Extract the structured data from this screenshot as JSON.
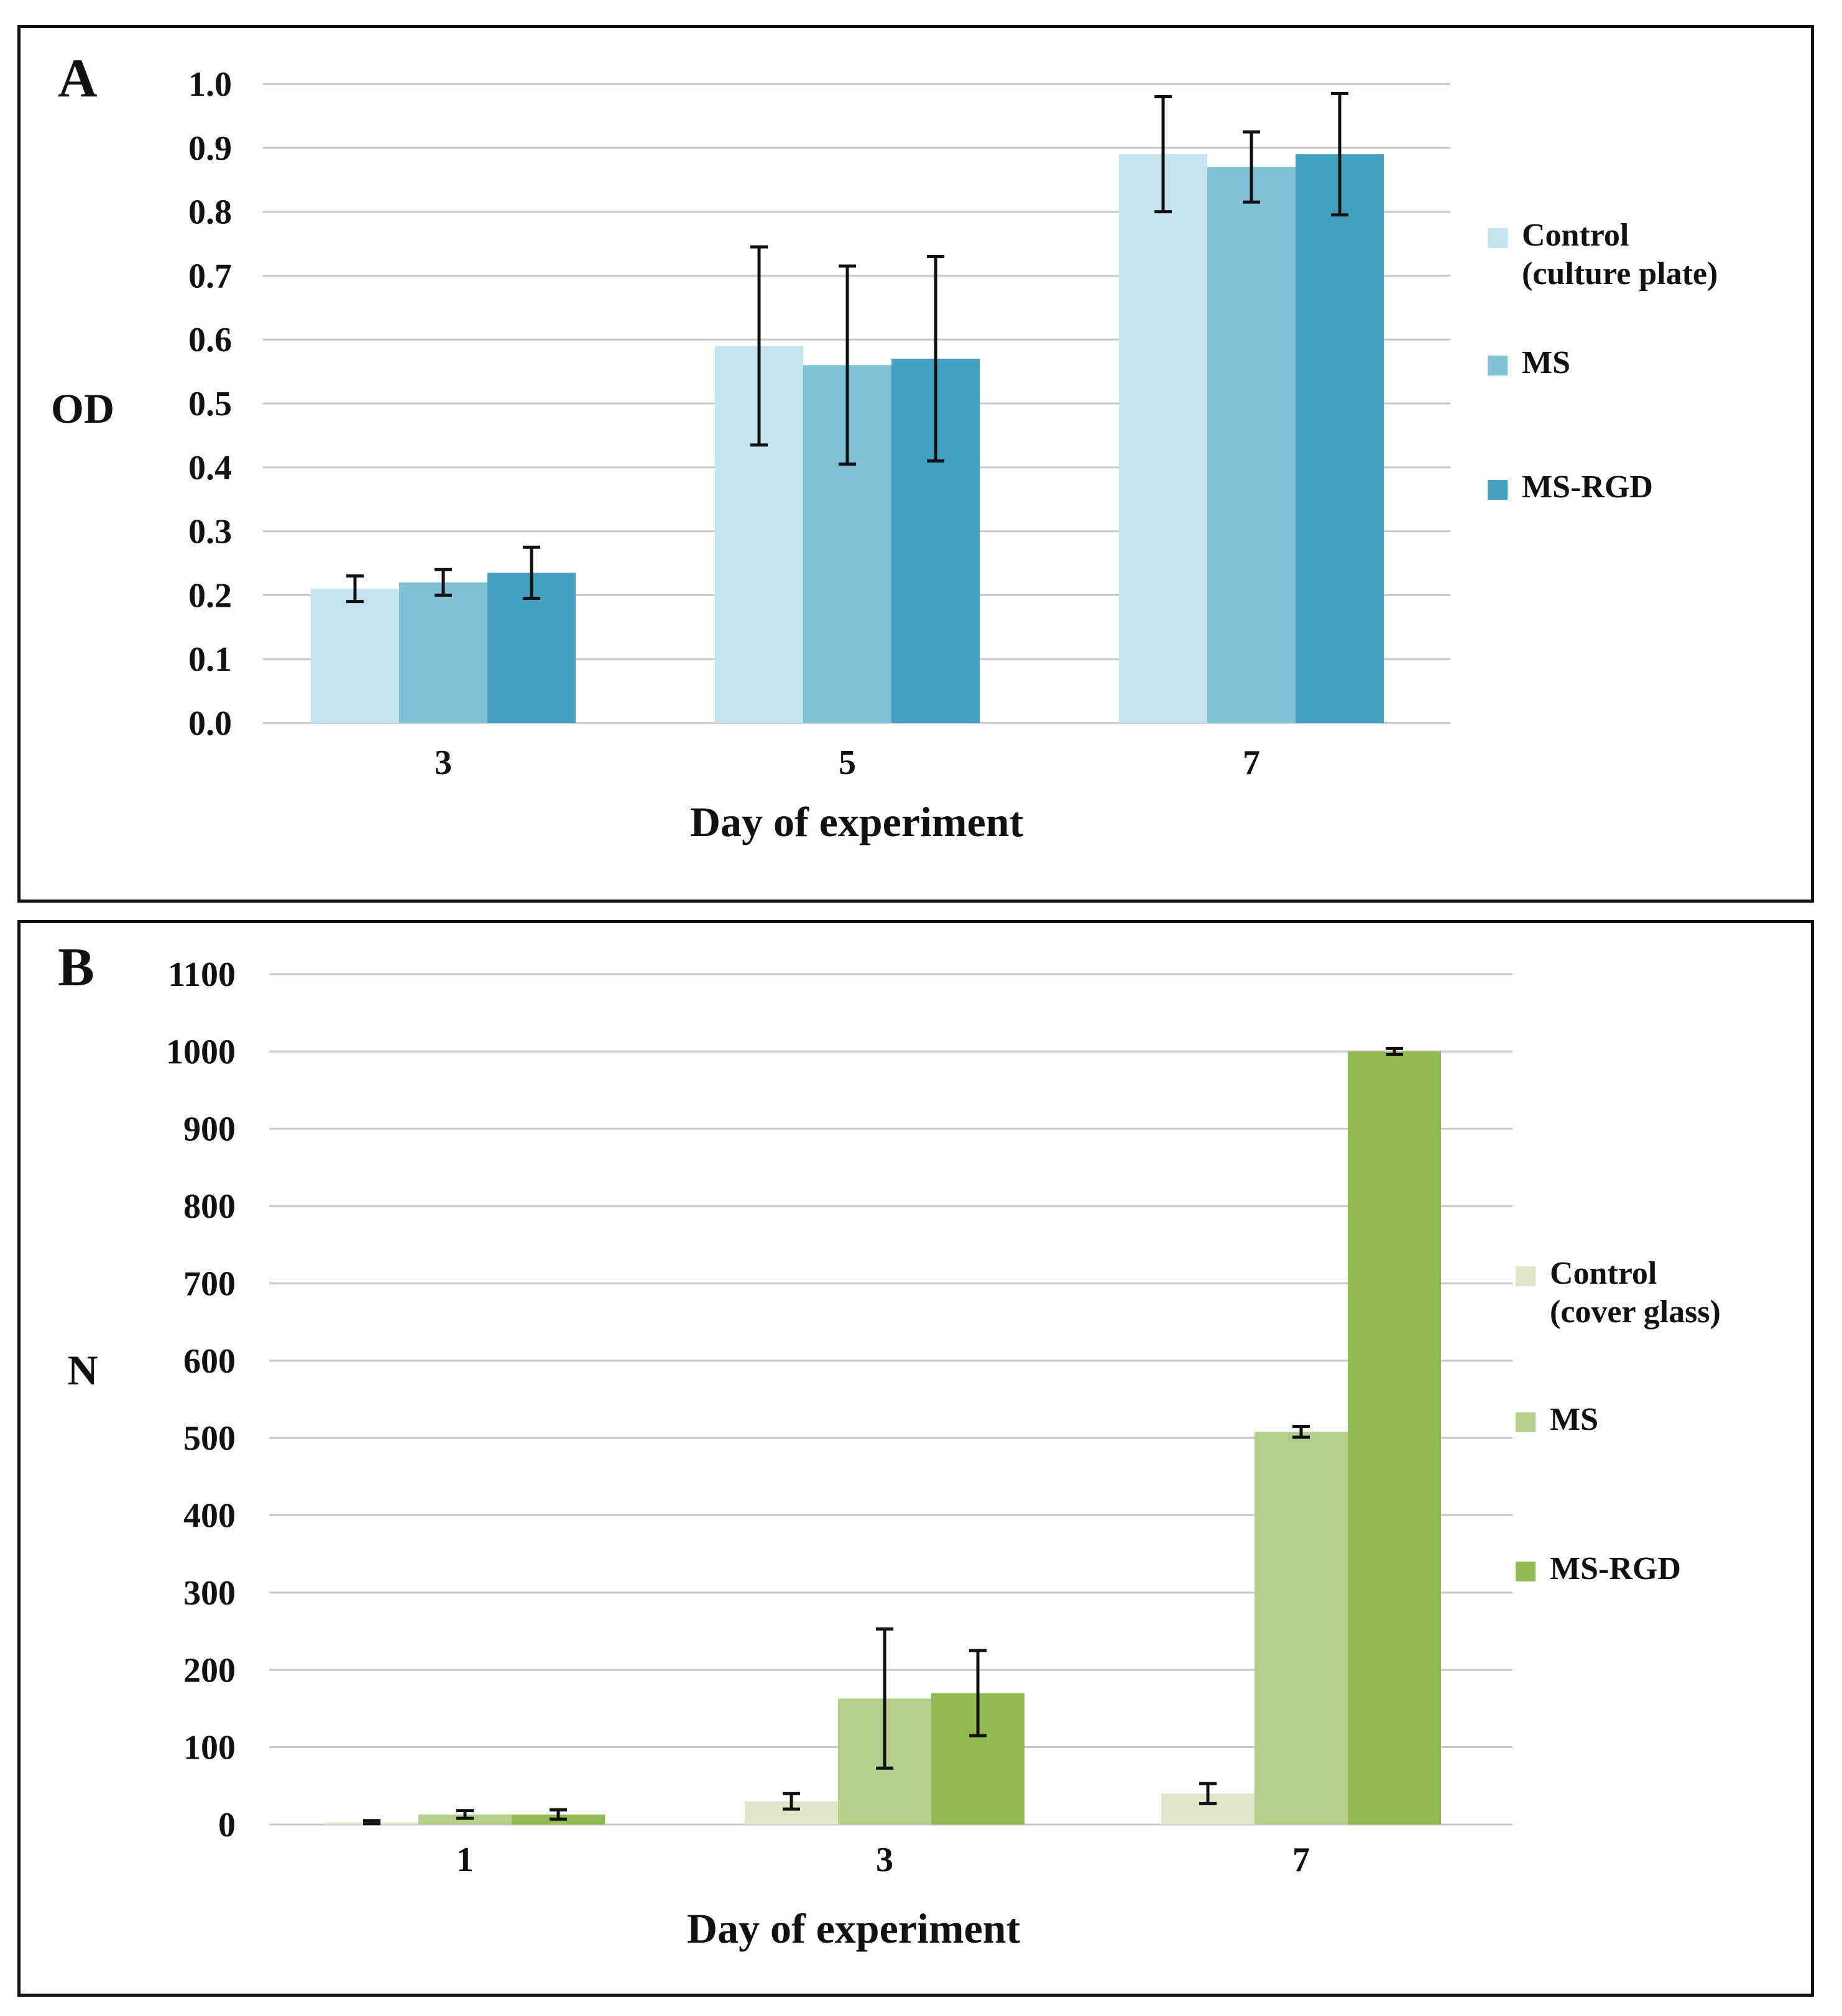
{
  "chart_data": [
    {
      "panel_label": "A",
      "type": "bar",
      "xlabel": "Day of experiment",
      "ylabel": "OD",
      "ylim": [
        0,
        1.0
      ],
      "yticks": [
        "0.0",
        "0.1",
        "0.2",
        "0.3",
        "0.4",
        "0.5",
        "0.6",
        "0.7",
        "0.8",
        "0.9",
        "1.0"
      ],
      "categories": [
        "3",
        "5",
        "7"
      ],
      "series": [
        {
          "name": "Control",
          "name_line2": "(culture plate)",
          "color": "#c5e3ee",
          "values": [
            0.21,
            0.59,
            0.89
          ],
          "errors": [
            0.02,
            0.155,
            0.09
          ]
        },
        {
          "name": "MS",
          "name_line2": "",
          "color": "#7fc1d7",
          "values": [
            0.22,
            0.56,
            0.87
          ],
          "errors": [
            0.02,
            0.155,
            0.055
          ]
        },
        {
          "name": "MS-RGD",
          "name_line2": "",
          "color": "#44a0c0",
          "values": [
            0.235,
            0.57,
            0.89
          ],
          "errors": [
            0.04,
            0.16,
            0.095
          ]
        }
      ],
      "grid": true,
      "legend": "right"
    },
    {
      "panel_label": "B",
      "type": "bar",
      "xlabel": "Day of experiment",
      "ylabel": "N",
      "ylim": [
        0,
        1100
      ],
      "yticks": [
        "0",
        "100",
        "200",
        "300",
        "400",
        "500",
        "600",
        "700",
        "800",
        "900",
        "1000",
        "1100"
      ],
      "categories": [
        "1",
        "3",
        "7"
      ],
      "series": [
        {
          "name": "Control",
          "name_line2": "(cover glass)",
          "color": "#dfe6cb",
          "values": [
            3,
            30,
            40
          ],
          "errors": [
            2,
            10,
            13
          ]
        },
        {
          "name": "MS",
          "name_line2": "",
          "color": "#b4ce8b",
          "values": [
            13,
            163,
            508
          ],
          "errors": [
            5,
            90,
            7
          ]
        },
        {
          "name": "MS-RGD",
          "name_line2": "",
          "color": "#93ba52",
          "values": [
            13,
            170,
            1000
          ],
          "errors": [
            6,
            55,
            4
          ]
        }
      ],
      "grid": true,
      "legend": "right"
    }
  ]
}
